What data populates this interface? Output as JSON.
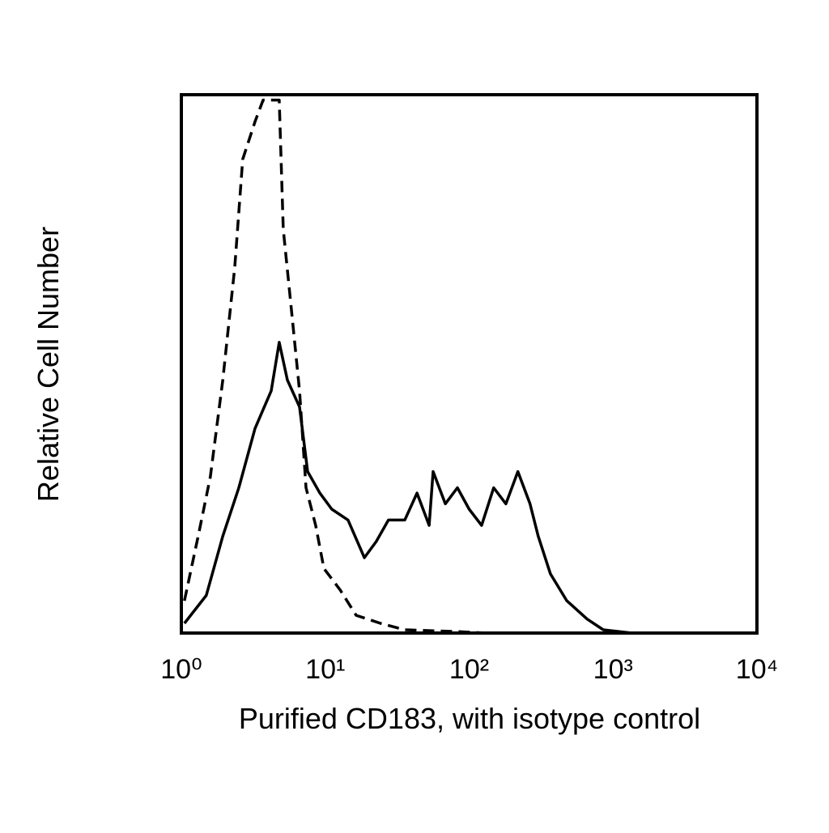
{
  "chart_data": {
    "type": "line",
    "xlabel": "Purified CD183, with isotype control",
    "ylabel": "Relative Cell Number",
    "xscale": "log",
    "xlim": [
      1,
      10000
    ],
    "xticks": [
      {
        "value": 1,
        "label": "10⁰"
      },
      {
        "value": 10,
        "label": "10¹"
      },
      {
        "value": 100,
        "label": "10²"
      },
      {
        "value": 1000,
        "label": "10³"
      },
      {
        "value": 10000,
        "label": "10⁴"
      }
    ],
    "ylim": [
      0,
      100
    ],
    "series": [
      {
        "color": "#000000",
        "style": "solid",
        "x": [
          1.05,
          1.49,
          1.94,
          2.51,
          3.25,
          4.21,
          4.79,
          5.46,
          6.63,
          7.54,
          9.17,
          11.1,
          14.4,
          18.7,
          22.6,
          27.5,
          35.7,
          43.4,
          52.7,
          56.2,
          68.3,
          82.9,
          100,
          122,
          148,
          180,
          218,
          265,
          302,
          367,
          477,
          660,
          855,
          1350
        ],
        "values": [
          1.8,
          7,
          18,
          27,
          38,
          45,
          54,
          47,
          42,
          30,
          26,
          23,
          21,
          14,
          17,
          21,
          21,
          26,
          20,
          30,
          24,
          27,
          23,
          20,
          27,
          24,
          30,
          24,
          18,
          11,
          6,
          2.6,
          0.6,
          0
        ]
      },
      {
        "color": "#000000",
        "style": "dashed",
        "x": [
          1.05,
          1.31,
          1.59,
          1.94,
          2.35,
          2.67,
          3.25,
          3.7,
          4.79,
          5.11,
          5.82,
          6.63,
          7.35,
          8.58,
          9.79,
          12.7,
          16.4,
          24.2,
          35.7,
          78,
          130
        ],
        "values": [
          6,
          18,
          29,
          47,
          68,
          88,
          95,
          99,
          99,
          75,
          60,
          45,
          27,
          20,
          12,
          8,
          3.3,
          1.8,
          0.6,
          0.3,
          0
        ]
      }
    ]
  }
}
